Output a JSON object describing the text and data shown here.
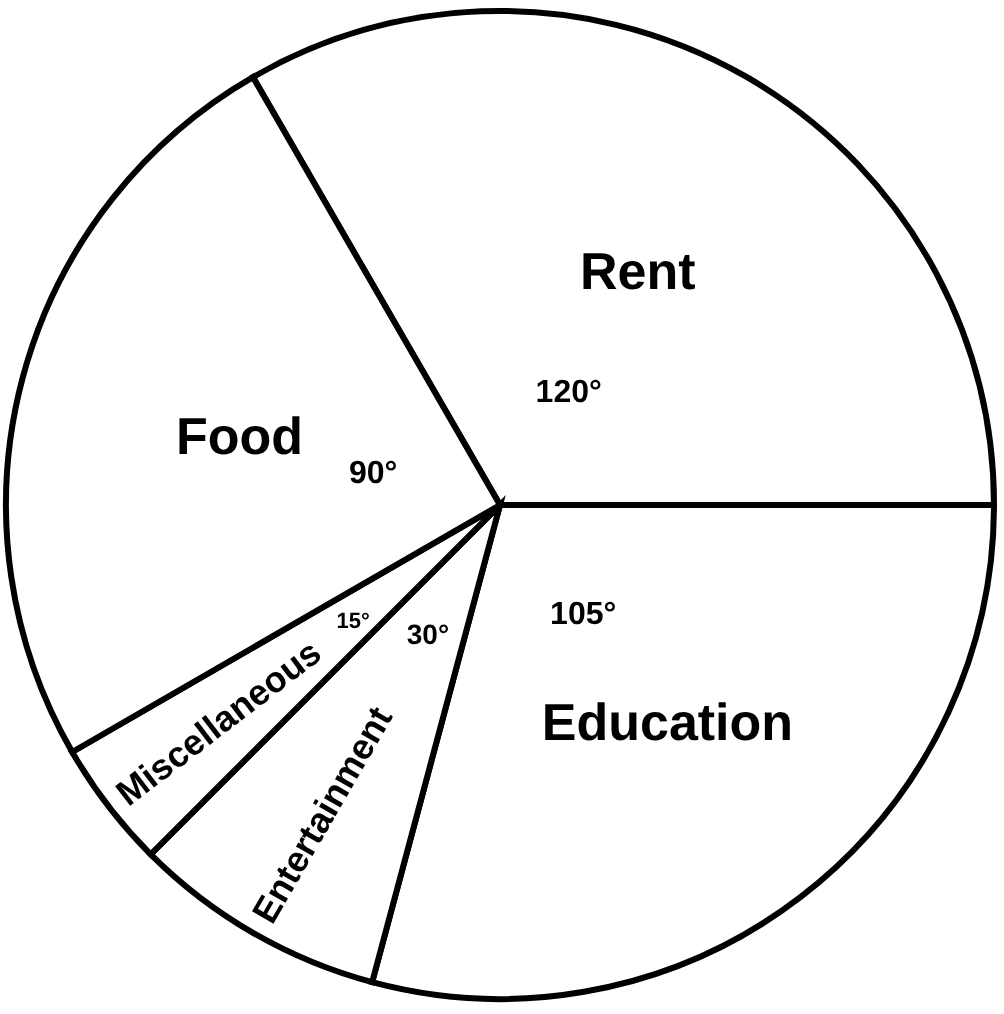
{
  "chart_data": {
    "type": "pie",
    "categories": [
      "Rent",
      "Education",
      "Entertainment",
      "Miscellaneous",
      "Food"
    ],
    "values": [
      120,
      105,
      30,
      15,
      90
    ],
    "value_labels": [
      "120°",
      "105°",
      "30°",
      "15°",
      "90°"
    ],
    "colors": [
      "#ffffff",
      "#ffffff",
      "#ffffff",
      "#ffffff",
      "#ffffff"
    ]
  }
}
